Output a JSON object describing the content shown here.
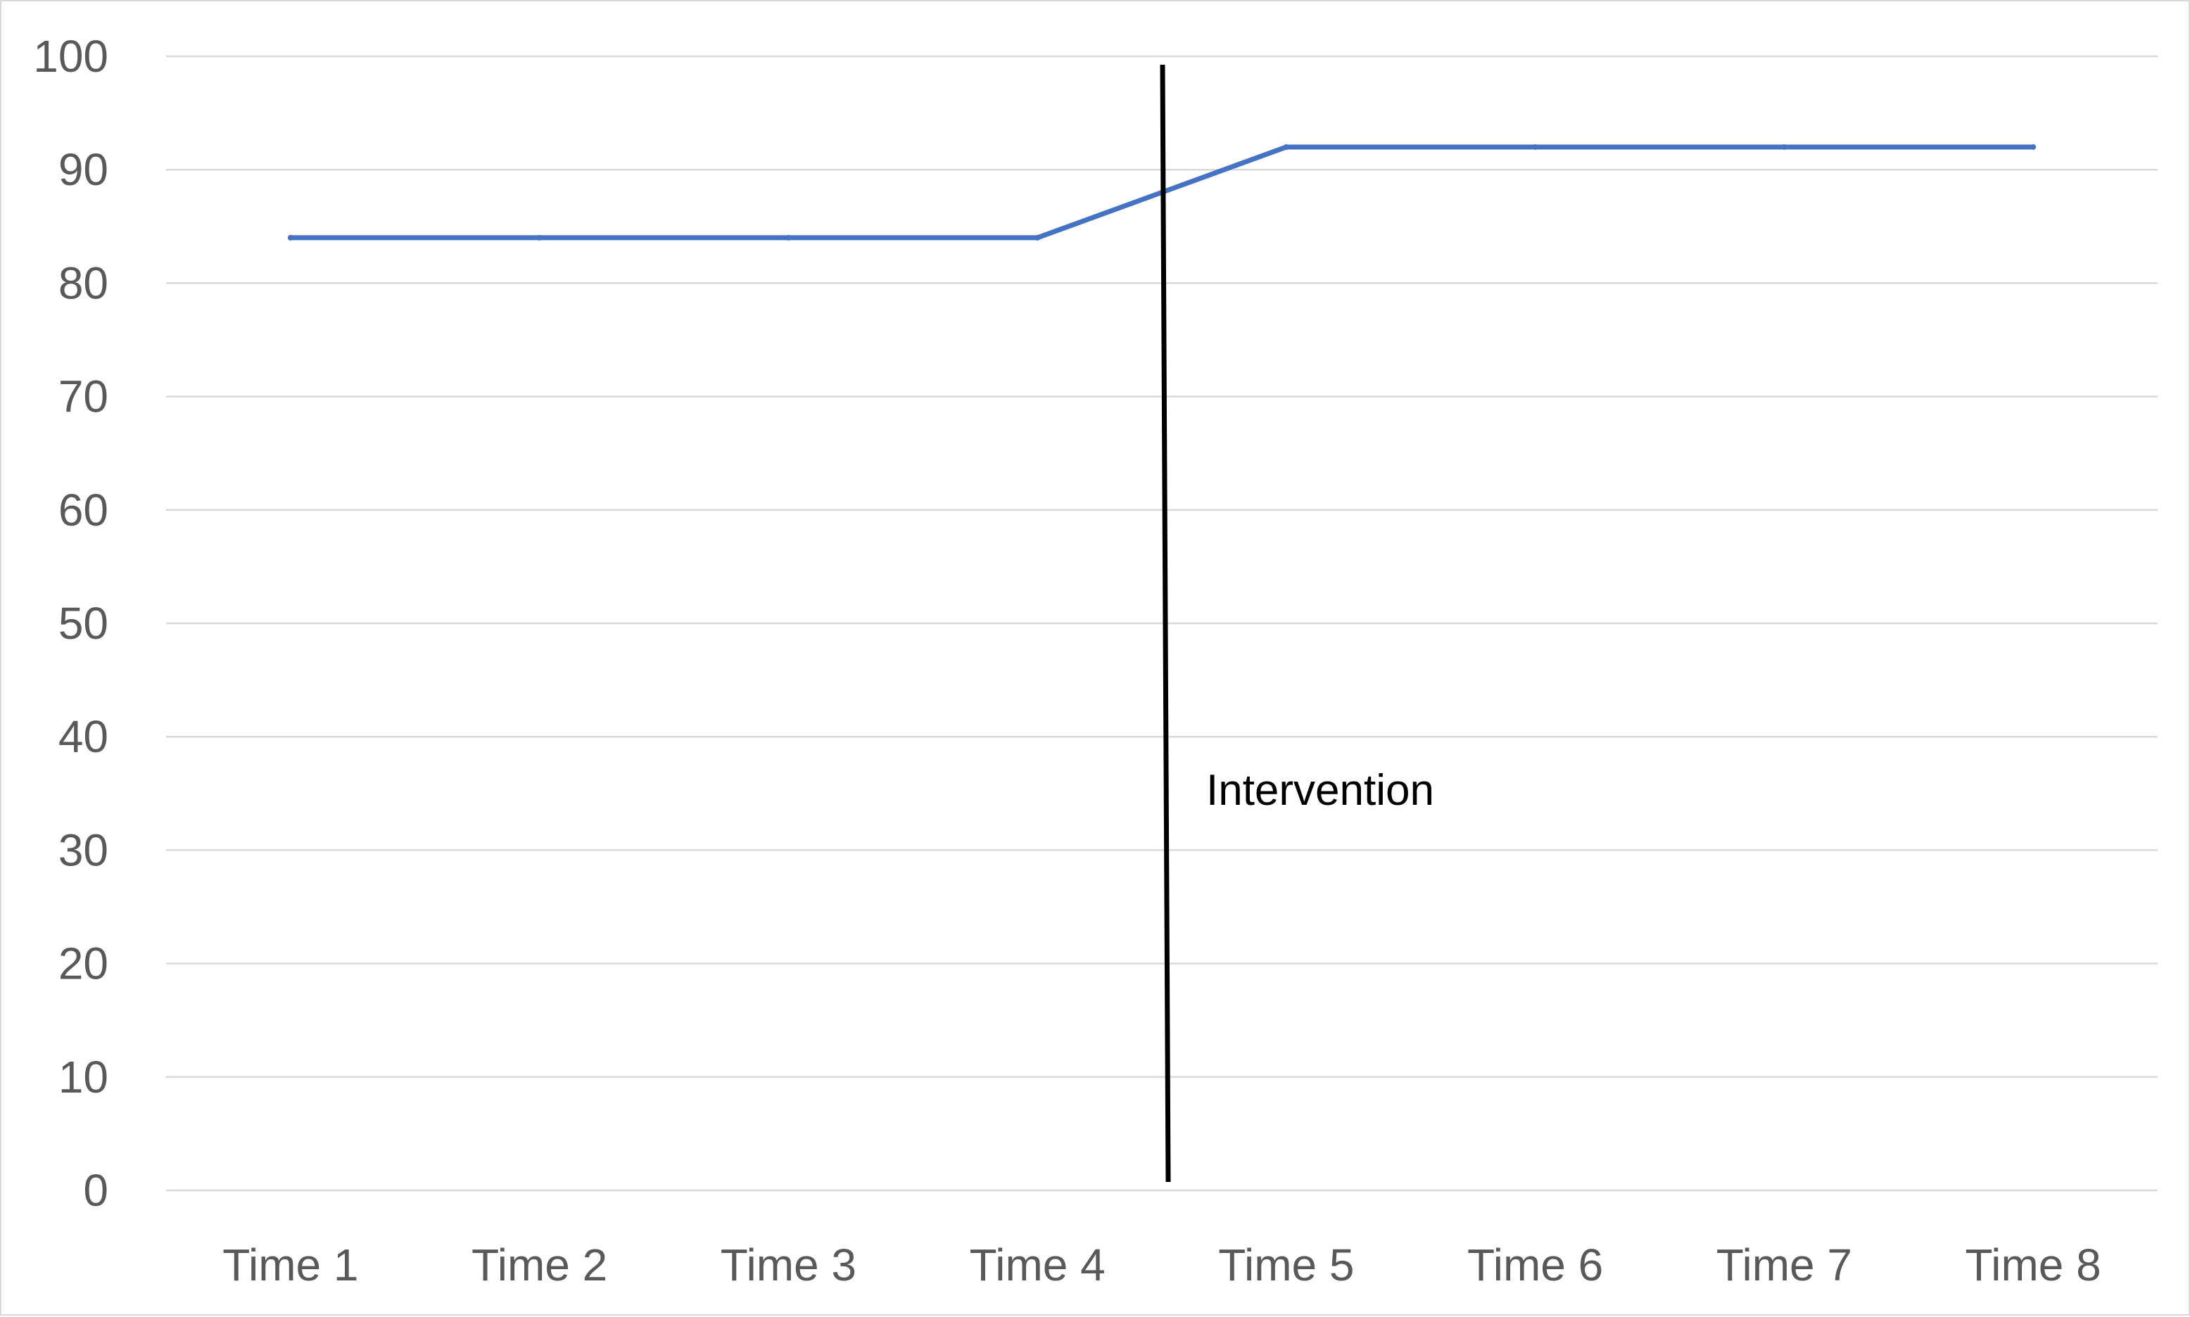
{
  "chart_data": {
    "type": "line",
    "title": "",
    "xlabel": "",
    "ylabel": "",
    "categories": [
      "Time 1",
      "Time 2",
      "Time 3",
      "Time 4",
      "Time 5",
      "Time 6",
      "Time 7",
      "Time 8"
    ],
    "series": [
      {
        "values": [
          84,
          84,
          84,
          84,
          92,
          92,
          92,
          92
        ],
        "color": "#4472c4"
      }
    ],
    "ylim": [
      0,
      100
    ],
    "yticks": [
      0,
      10,
      20,
      30,
      40,
      50,
      60,
      70,
      80,
      90,
      100
    ],
    "grid": true,
    "legend": "none",
    "annotations": [
      {
        "type": "vertical-line",
        "between": [
          "Time 4",
          "Time 5"
        ],
        "label": "Intervention",
        "color": "#000000"
      }
    ]
  }
}
